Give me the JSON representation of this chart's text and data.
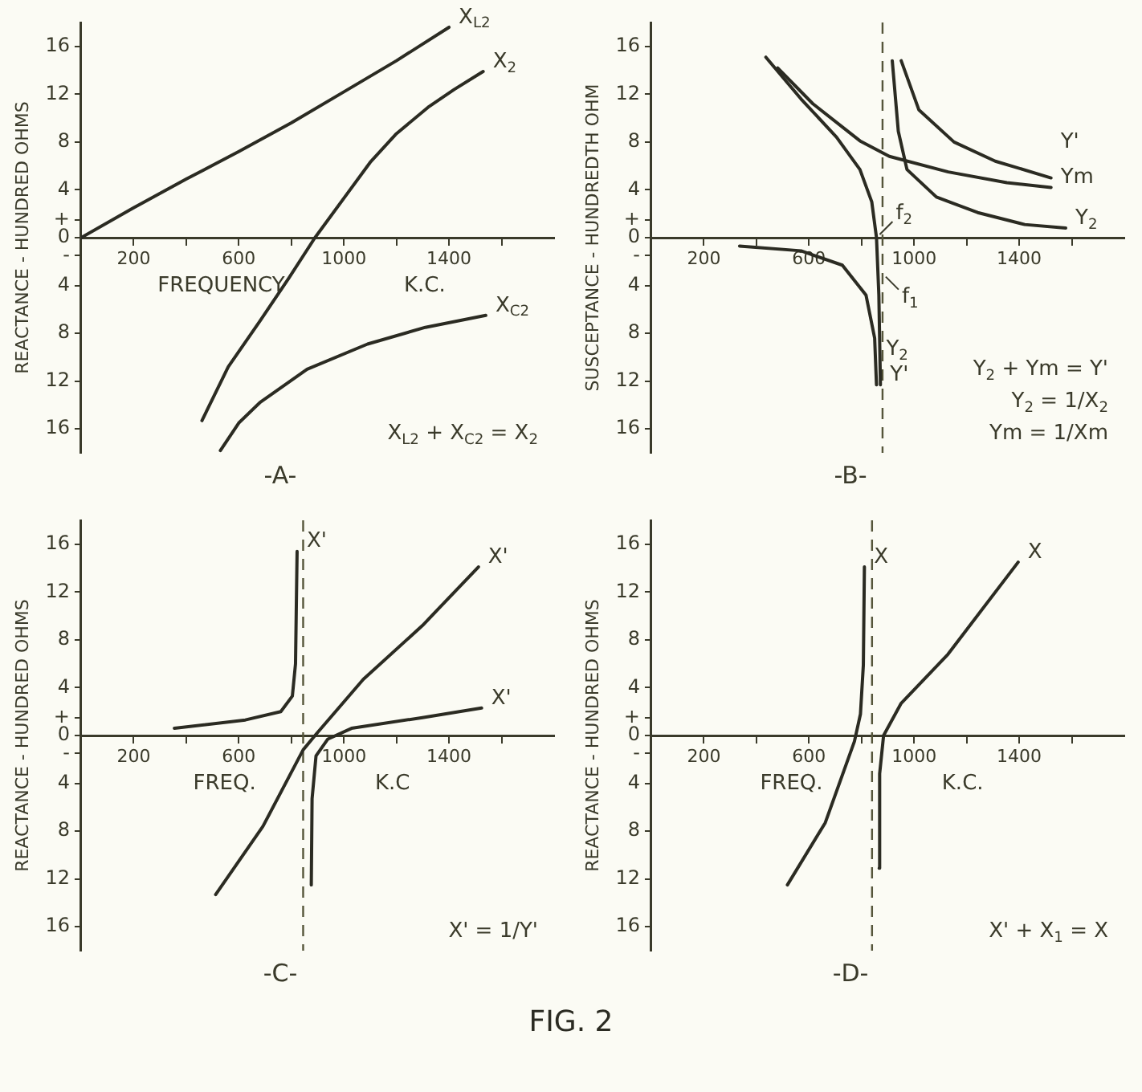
{
  "chart_data": [
    {
      "type": "line",
      "title": "-A-",
      "xlabel": "FREQUENCY K.C.",
      "ylabel": "REACTANCE - HUNDRED OHMS",
      "marker": "none",
      "line_style": "solid",
      "legend": false,
      "grid": false,
      "xlim": [
        0,
        1800
      ],
      "xticks": [
        200,
        {
          "value": 400,
          "label": null
        },
        600,
        {
          "value": 800,
          "label": null
        },
        1000,
        {
          "value": 1200,
          "label": null
        },
        1400,
        {
          "value": 1600,
          "label": null
        }
      ],
      "ylim": [
        -18,
        18
      ],
      "yticks": [
        {
          "value": 16,
          "label": "16"
        },
        {
          "value": 12,
          "label": "12"
        },
        {
          "value": 8,
          "label": "8"
        },
        {
          "value": 4,
          "label": "4"
        },
        {
          "value": 1.5,
          "label": "+"
        },
        {
          "value": 0,
          "label": "0"
        },
        {
          "value": -1.5,
          "label": "-"
        },
        {
          "value": -4,
          "label": "4"
        },
        {
          "value": -8,
          "label": "8"
        },
        {
          "value": -12,
          "label": "12"
        },
        {
          "value": -16,
          "label": "16"
        }
      ],
      "series": [
        {
          "type": "line",
          "name": "X$_{L2}$",
          "color": "#2b2b22",
          "x": [
            0,
            200,
            400,
            600,
            800,
            1000,
            1200,
            1400
          ],
          "values": [
            0,
            2.5,
            4.9,
            7.2,
            9.6,
            12.2,
            14.8,
            17.6
          ]
        },
        {
          "type": "line",
          "name": "X$_{2}$",
          "color": "#2b2b22",
          "x": [
            460,
            560,
            680,
            790,
            890,
            1000,
            1100,
            1200,
            1320,
            1420,
            1530
          ],
          "values": [
            -15.3,
            -10.8,
            -7,
            -3.4,
            0,
            3.3,
            6.3,
            8.7,
            10.9,
            12.4,
            13.9
          ]
        },
        {
          "type": "line",
          "name": "X$_{C2}$",
          "color": "#2b2b22",
          "x": [
            530,
            600,
            680,
            860,
            1090,
            1310,
            1540
          ],
          "values": [
            -17.8,
            -15.5,
            -13.8,
            -11,
            -8.9,
            -7.5,
            -6.5
          ]
        }
      ],
      "annotations": [
        "X$_{L2}$ + X$_{C2}$ = X$_{2}$"
      ]
    },
    {
      "type": "line",
      "title": "-B-",
      "ylabel": "SUSCEPTANCE - HUNDREDTH OHM",
      "marker": "none",
      "line_style": "solid",
      "legend": false,
      "grid": false,
      "xlim": [
        0,
        1800
      ],
      "xticks": [
        200,
        {
          "value": 400,
          "label": null
        },
        600,
        {
          "value": 800,
          "label": null
        },
        1000,
        {
          "value": 1200,
          "label": null
        },
        1400,
        {
          "value": 1600,
          "label": null
        }
      ],
      "ylim": [
        -18,
        18
      ],
      "yticks": [
        {
          "value": 16,
          "label": "16"
        },
        {
          "value": 12,
          "label": "12"
        },
        {
          "value": 8,
          "label": "8"
        },
        {
          "value": 4,
          "label": "4"
        },
        {
          "value": 1.5,
          "label": "+"
        },
        {
          "value": 0,
          "label": "0"
        },
        {
          "value": -1.5,
          "label": "-"
        },
        {
          "value": -4,
          "label": "4"
        },
        {
          "value": -8,
          "label": "8"
        },
        {
          "value": -12,
          "label": "12"
        },
        {
          "value": -16,
          "label": "16"
        }
      ],
      "ref_lines": [
        {
          "axis": "x",
          "value": 880,
          "line_style": "dashed",
          "color": "#55553a"
        }
      ],
      "series": [
        {
          "type": "line",
          "name": "Ym",
          "color": "#2b2b22",
          "x": [
            481,
            615,
            794,
            906,
            1130,
            1353,
            1521
          ],
          "values": [
            14.2,
            11.2,
            8.1,
            6.8,
            5.5,
            4.6,
            4.2
          ]
        },
        {
          "type": "line",
          "name": "Y'",
          "color": "#2b2b22",
          "x": [
            436,
            570,
            705,
            794,
            839,
            857,
            866,
            872
          ],
          "values": [
            15.1,
            11.6,
            8.4,
            5.7,
            3,
            0,
            -4.8,
            -12.3
          ]
        },
        {
          "type": "line",
          "name": "Y$_{2}$",
          "color": "#2b2b22",
          "x": [
            336,
            570,
            727,
            817,
            850,
            857
          ],
          "values": [
            -0.7,
            -1.1,
            -2.3,
            -4.8,
            -8.4,
            -12.3
          ]
        },
        {
          "type": "line",
          "name": "Y$_{2}$",
          "color": "#2b2b22",
          "x": [
            917,
            940,
            973,
            1085,
            1242,
            1421,
            1577
          ],
          "values": [
            14.8,
            8.9,
            5.7,
            3.4,
            2.1,
            1.1,
            0.8
          ]
        },
        {
          "type": "line",
          "name": "Y'",
          "color": "#2b2b22",
          "x": [
            951,
            1018,
            1152,
            1309,
            1521
          ],
          "values": [
            14.8,
            10.7,
            8,
            6.4,
            5
          ]
        }
      ],
      "annotations": [
        {
          "text": "f$_{2}$",
          "x": 857,
          "y": 0
        },
        {
          "text": "f$_{1}$",
          "x": 880,
          "y": -3
        },
        "Y$_{2}$ + Ym = Y'",
        "Y$_{2}$ = 1/X$_{2}$",
        "Ym = 1/Xm"
      ]
    },
    {
      "type": "line",
      "title": "-C-",
      "xlabel": "FREQ. K.C",
      "ylabel": "REACTANCE - HUNDRED OHMS",
      "marker": "none",
      "line_style": "solid",
      "legend": false,
      "grid": false,
      "xlim": [
        0,
        1800
      ],
      "xticks": [
        200,
        {
          "value": 400,
          "label": null
        },
        600,
        {
          "value": 800,
          "label": null
        },
        1000,
        {
          "value": 1200,
          "label": null
        },
        1400,
        {
          "value": 1600,
          "label": null
        }
      ],
      "ylim": [
        -18,
        18
      ],
      "yticks": [
        {
          "value": 16,
          "label": "16"
        },
        {
          "value": 12,
          "label": "12"
        },
        {
          "value": 8,
          "label": "8"
        },
        {
          "value": 4,
          "label": "4"
        },
        {
          "value": 1.5,
          "label": "+"
        },
        {
          "value": 0,
          "label": "0"
        },
        {
          "value": -1.5,
          "label": "-"
        },
        {
          "value": -4,
          "label": "4"
        },
        {
          "value": -8,
          "label": "8"
        },
        {
          "value": -12,
          "label": "12"
        },
        {
          "value": -16,
          "label": "16"
        }
      ],
      "ref_lines": [
        {
          "axis": "x",
          "value": 845,
          "line_style": "dashed",
          "color": "#55553a"
        }
      ],
      "series": [
        {
          "type": "line",
          "name": "X'",
          "color": "#2b2b22",
          "x": [
            355,
            625,
            760,
            804,
            816,
            822
          ],
          "values": [
            0.6,
            1.3,
            2,
            3.3,
            6,
            15.4
          ]
        },
        {
          "type": "line",
          "name": "X'",
          "color": "#2b2b22",
          "x": [
            876,
            879,
            894,
            939,
            1029,
            1299,
            1524
          ],
          "values": [
            -12.5,
            -5.3,
            -1.7,
            -0.3,
            0.6,
            1.5,
            2.3
          ]
        },
        {
          "type": "line",
          "name": "X'",
          "color": "#2b2b22",
          "x": [
            512,
            692,
            845,
            894,
            1074,
            1299,
            1512
          ],
          "values": [
            -13.3,
            -7.6,
            -1.2,
            0.1,
            4.7,
            9.2,
            14.1
          ]
        }
      ],
      "annotations": [
        "X' = 1/Y'"
      ]
    },
    {
      "type": "line",
      "title": "-D-",
      "subtitle": "FIG. 2",
      "xlabel": "FREQ. K.C.",
      "ylabel": "REACTANCE - HUNDRED OHMS",
      "marker": "none",
      "line_style": "solid",
      "legend": false,
      "grid": false,
      "xlim": [
        0,
        1800
      ],
      "xticks": [
        200,
        {
          "value": 400,
          "label": null
        },
        600,
        {
          "value": 800,
          "label": null
        },
        1000,
        {
          "value": 1200,
          "label": null
        },
        1400,
        {
          "value": 1600,
          "label": null
        }
      ],
      "ylim": [
        -18,
        18
      ],
      "yticks": [
        {
          "value": 16,
          "label": "16"
        },
        {
          "value": 12,
          "label": "12"
        },
        {
          "value": 8,
          "label": "8"
        },
        {
          "value": 4,
          "label": "4"
        },
        {
          "value": 1.5,
          "label": "+"
        },
        {
          "value": 0,
          "label": "0"
        },
        {
          "value": -1.5,
          "label": "-"
        },
        {
          "value": -4,
          "label": "4"
        },
        {
          "value": -8,
          "label": "8"
        },
        {
          "value": -12,
          "label": "12"
        },
        {
          "value": -16,
          "label": "16"
        }
      ],
      "ref_lines": [
        {
          "axis": "x",
          "value": 840,
          "line_style": "dashed",
          "color": "#55553a"
        }
      ],
      "series": [
        {
          "type": "line",
          "name": "X",
          "color": "#2b2b22",
          "x": [
            518,
            662,
            773,
            796,
            807,
            811
          ],
          "values": [
            -12.5,
            -7.3,
            -0.5,
            1.8,
            5.9,
            14.1
          ]
        },
        {
          "type": "line",
          "name": "X",
          "color": "#2b2b22",
          "x": [
            867,
            869,
            884,
            951,
            1129,
            1396
          ],
          "values": [
            -11.1,
            -3.2,
            0,
            2.7,
            6.8,
            14.5
          ]
        }
      ],
      "annotations": [
        "X' + X$_{1}$ = X"
      ]
    }
  ]
}
